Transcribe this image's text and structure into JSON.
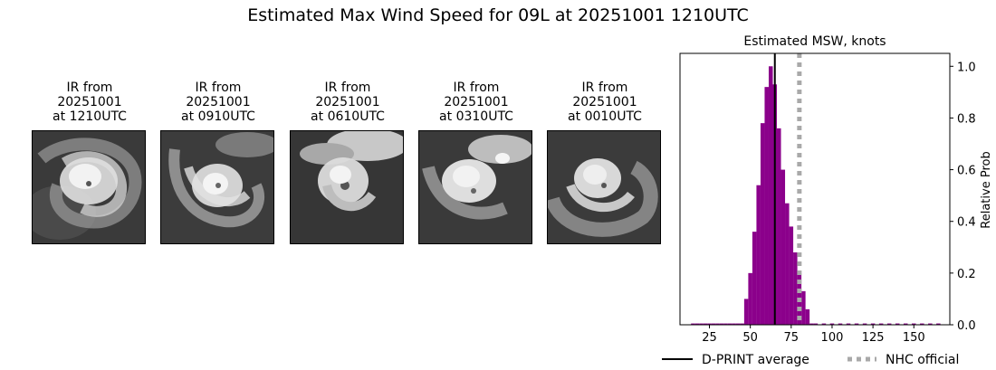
{
  "title": "Estimated Max Wind Speed for 09L at 20251001 1210UTC",
  "ir_panels": [
    {
      "line1": "IR from",
      "line2": "20251001",
      "line3": "at 1210UTC"
    },
    {
      "line1": "IR from",
      "line2": "20251001",
      "line3": "at 0910UTC"
    },
    {
      "line1": "IR from",
      "line2": "20251001",
      "line3": "at 0610UTC"
    },
    {
      "line1": "IR from",
      "line2": "20251001",
      "line3": "at 0310UTC"
    },
    {
      "line1": "IR from",
      "line2": "20251001",
      "line3": "at 0010UTC"
    }
  ],
  "chart_data": {
    "type": "bar",
    "title": "Estimated MSW, knots",
    "xlabel": "",
    "ylabel": "Relative Prob",
    "xlim": [
      7,
      172
    ],
    "ylim": [
      0,
      1.05
    ],
    "xticks": [
      25,
      50,
      75,
      100,
      125,
      150
    ],
    "yticks": [
      0.0,
      0.2,
      0.4,
      0.6,
      0.8,
      1.0
    ],
    "bin_width": 2.5,
    "bins": [
      {
        "x": 15,
        "p": 0.005
      },
      {
        "x": 17.5,
        "p": 0.005
      },
      {
        "x": 20,
        "p": 0.005
      },
      {
        "x": 22.5,
        "p": 0.005
      },
      {
        "x": 25,
        "p": 0.005
      },
      {
        "x": 27.5,
        "p": 0.005
      },
      {
        "x": 30,
        "p": 0.005
      },
      {
        "x": 32.5,
        "p": 0.005
      },
      {
        "x": 35,
        "p": 0.005
      },
      {
        "x": 37.5,
        "p": 0.005
      },
      {
        "x": 40,
        "p": 0.005
      },
      {
        "x": 42.5,
        "p": 0.005
      },
      {
        "x": 45,
        "p": 0.005
      },
      {
        "x": 47.5,
        "p": 0.1
      },
      {
        "x": 50,
        "p": 0.2
      },
      {
        "x": 52.5,
        "p": 0.36
      },
      {
        "x": 55,
        "p": 0.54
      },
      {
        "x": 57.5,
        "p": 0.78
      },
      {
        "x": 60,
        "p": 0.92
      },
      {
        "x": 62.5,
        "p": 1.0
      },
      {
        "x": 65,
        "p": 0.93
      },
      {
        "x": 67.5,
        "p": 0.76
      },
      {
        "x": 70,
        "p": 0.6
      },
      {
        "x": 72.5,
        "p": 0.47
      },
      {
        "x": 75,
        "p": 0.38
      },
      {
        "x": 77.5,
        "p": 0.28
      },
      {
        "x": 80,
        "p": 0.2
      },
      {
        "x": 82.5,
        "p": 0.13
      },
      {
        "x": 85,
        "p": 0.06
      },
      {
        "x": 87.5,
        "p": 0.005
      },
      {
        "x": 90,
        "p": 0.005
      },
      {
        "x": 95,
        "p": 0.005
      },
      {
        "x": 100,
        "p": 0.005
      },
      {
        "x": 105,
        "p": 0.005
      },
      {
        "x": 110,
        "p": 0.005
      },
      {
        "x": 115,
        "p": 0.005
      },
      {
        "x": 120,
        "p": 0.005
      },
      {
        "x": 125,
        "p": 0.005
      },
      {
        "x": 130,
        "p": 0.005
      },
      {
        "x": 135,
        "p": 0.005
      },
      {
        "x": 140,
        "p": 0.005
      },
      {
        "x": 145,
        "p": 0.005
      },
      {
        "x": 150,
        "p": 0.005
      },
      {
        "x": 155,
        "p": 0.005
      },
      {
        "x": 160,
        "p": 0.005
      },
      {
        "x": 165,
        "p": 0.005
      }
    ],
    "dprint_average": 65,
    "nhc_official": 80,
    "bar_color": "#8b008b",
    "dprint_color": "#000000",
    "nhc_color": "#a9a9a9",
    "legend": [
      {
        "label": "D-PRINT average",
        "style": "solid"
      },
      {
        "label": "NHC official",
        "style": "dotted"
      }
    ],
    "legend_position": "bottom"
  }
}
